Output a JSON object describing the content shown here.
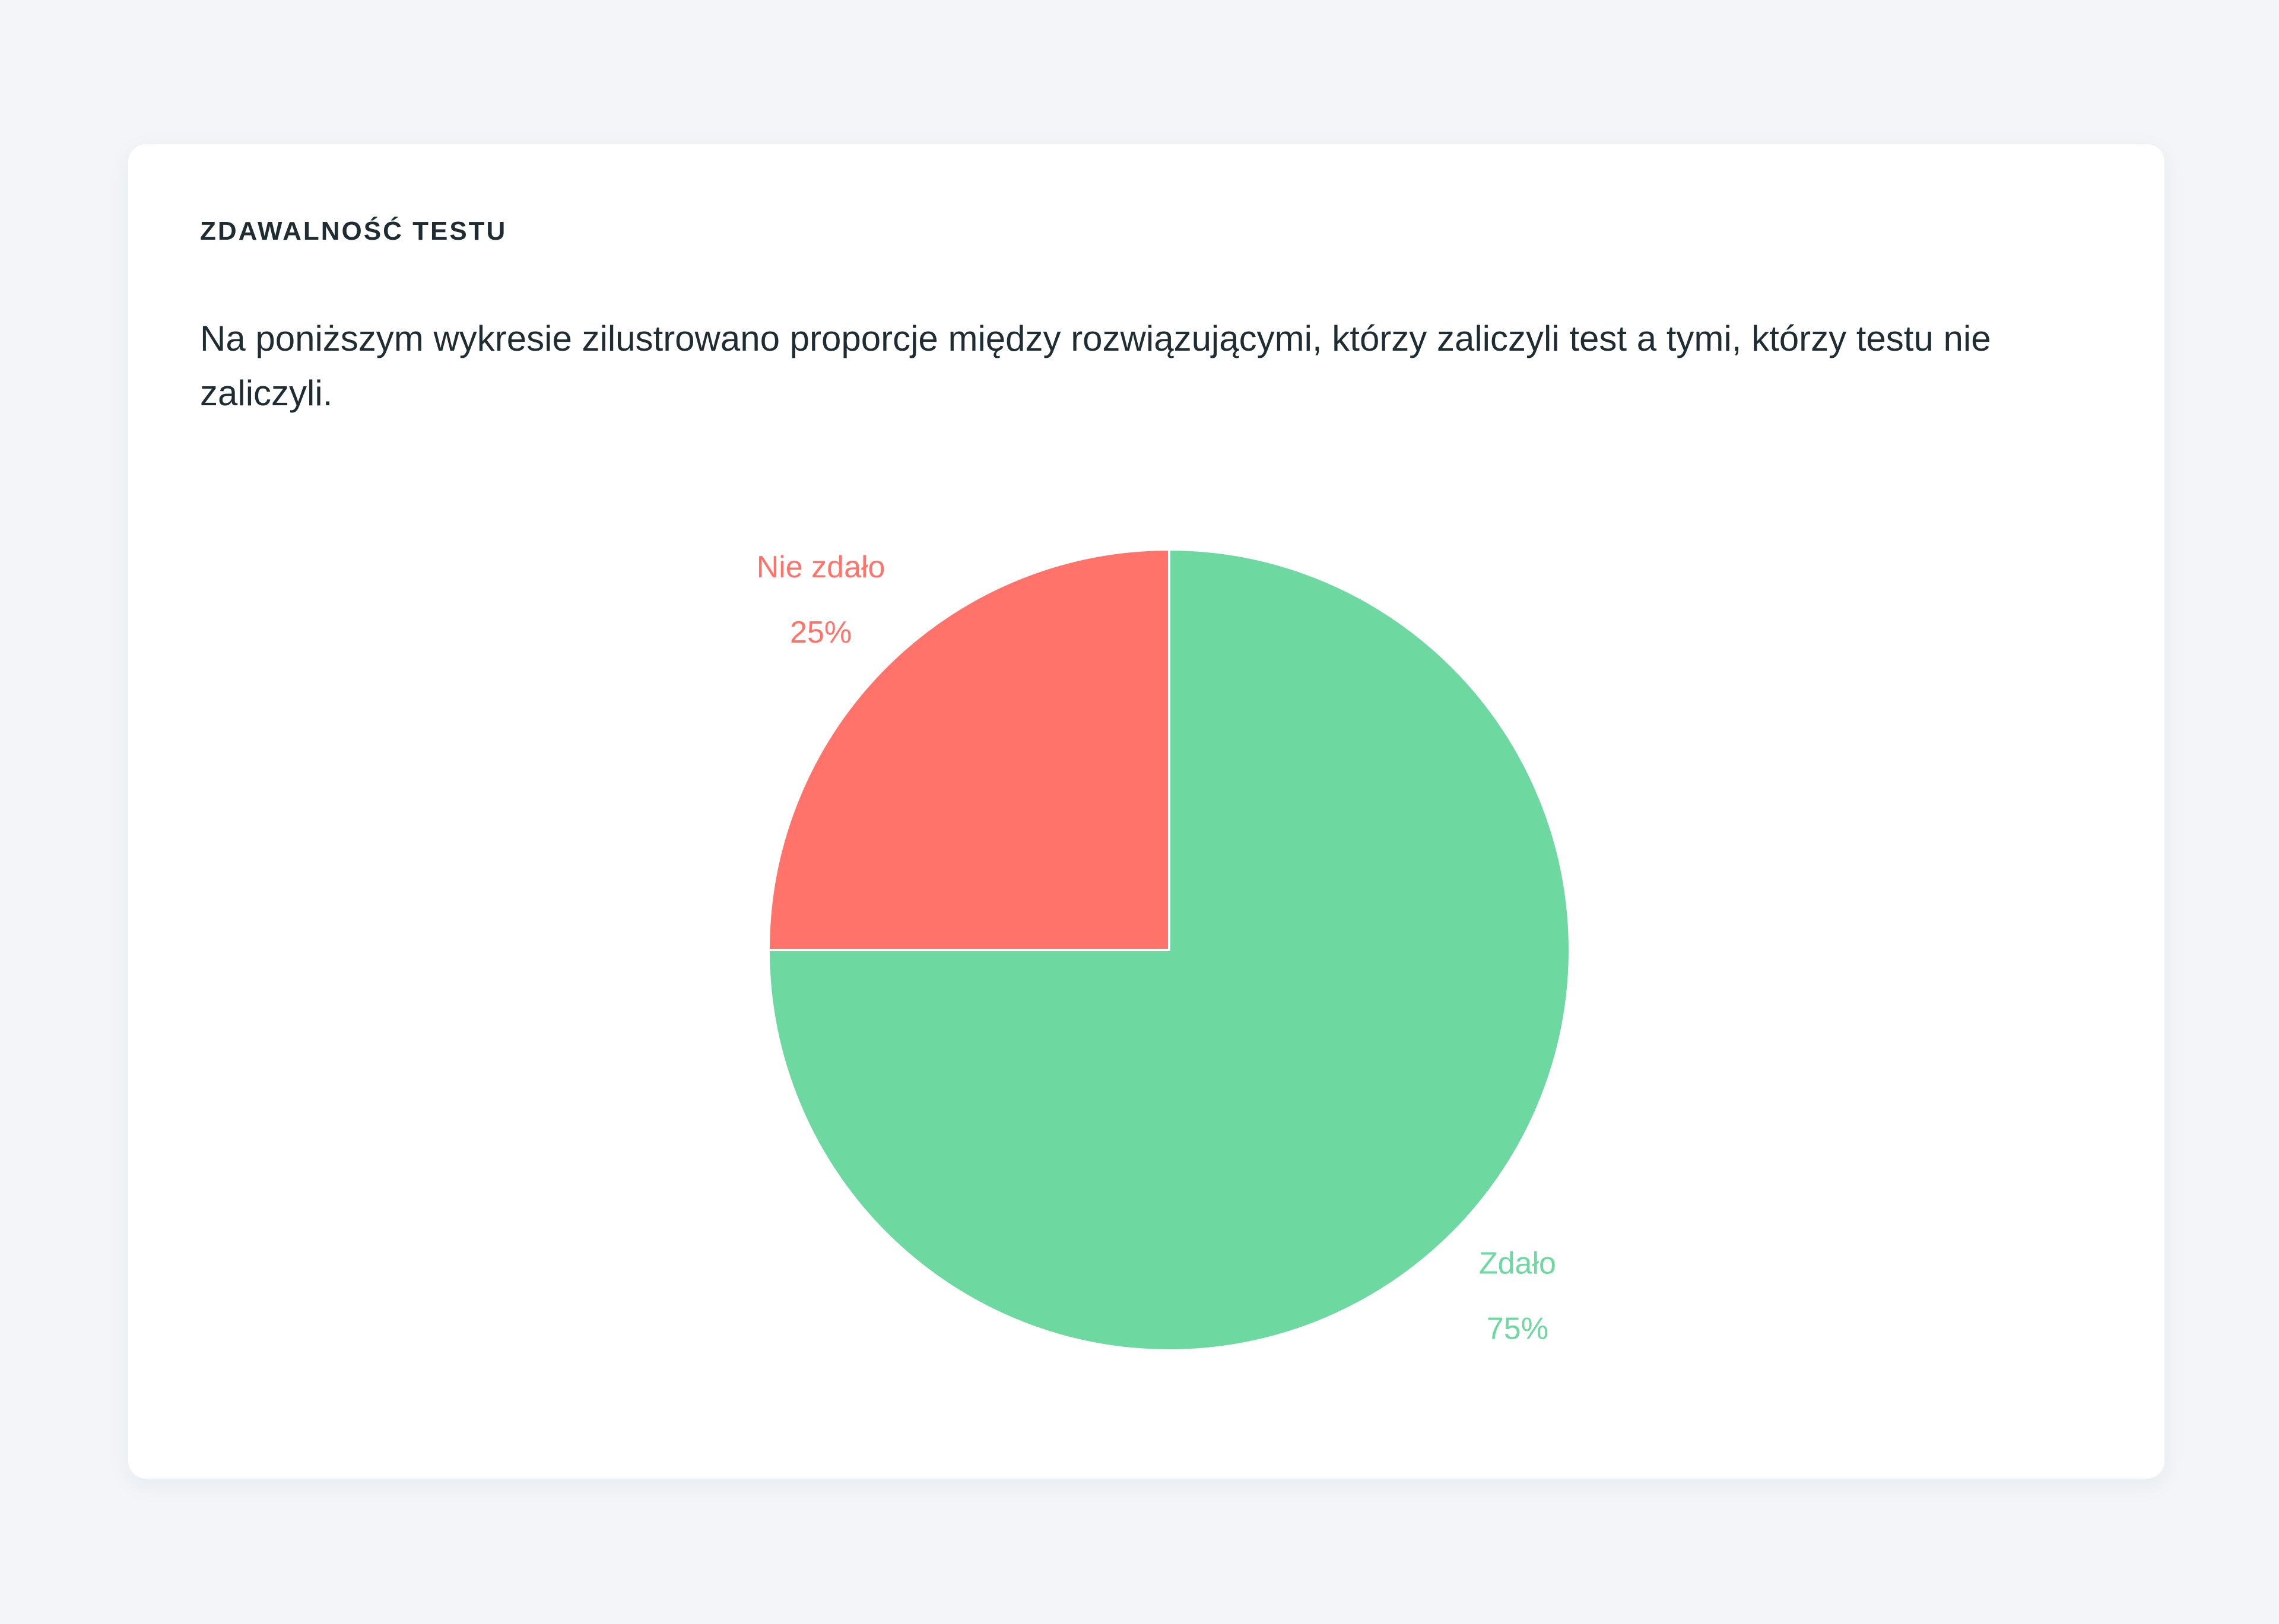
{
  "card": {
    "title": "ZDAWALNOŚĆ TESTU",
    "description": "Na poniższym wykresie zilustrowano proporcje między rozwiązującymi, którzy zaliczyli test a tymi, którzy testu nie zaliczyli."
  },
  "chart_data": {
    "type": "pie",
    "title": "",
    "start_angle_deg": 0,
    "direction": "clockwise",
    "slices": [
      {
        "name": "Zdało",
        "value": 75,
        "value_label": "75%",
        "color": "#6dd8a0"
      },
      {
        "name": "Nie zdało",
        "value": 25,
        "value_label": "25%",
        "color": "#ff736b"
      }
    ],
    "legend": "none"
  }
}
